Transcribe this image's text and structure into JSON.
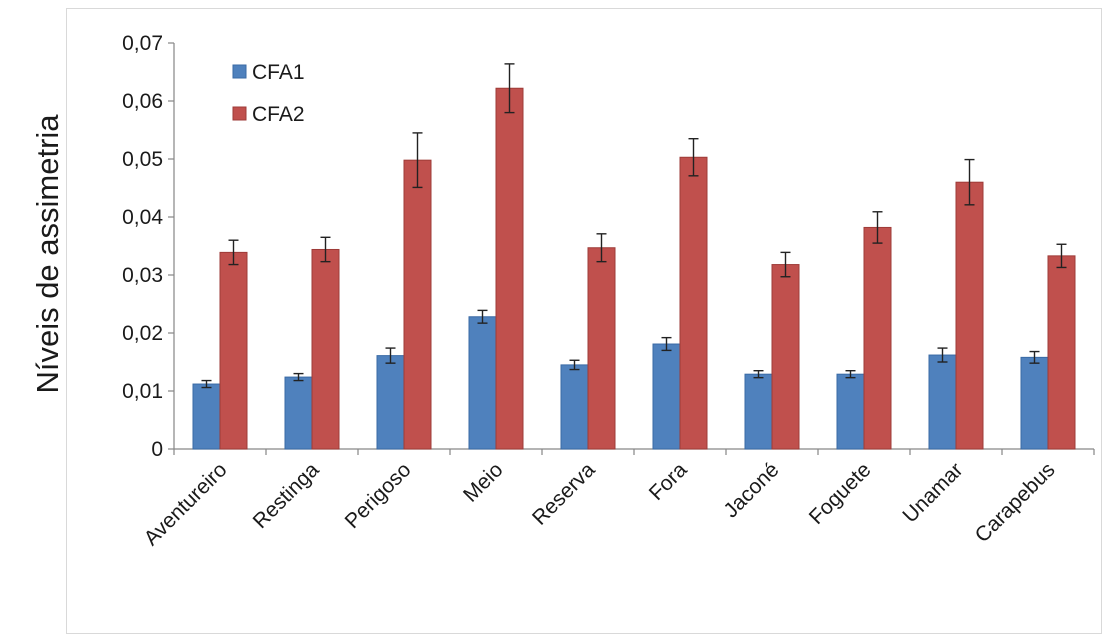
{
  "chart_data": {
    "type": "bar",
    "title": "",
    "xlabel": "",
    "ylabel": "Níveis de assimetria",
    "ylim": [
      0,
      0.07
    ],
    "yticks": [
      0,
      0.01,
      0.02,
      0.03,
      0.04,
      0.05,
      0.06,
      0.07
    ],
    "ytick_labels": [
      "0",
      "0,01",
      "0,02",
      "0,03",
      "0,04",
      "0,05",
      "0,06",
      "0,07"
    ],
    "categories": [
      "Aventureiro",
      "Restinga",
      "Perigoso",
      "Meio",
      "Reserva",
      "Fora",
      "Jaconé",
      "Foguete",
      "Unamar",
      "Carapebus"
    ],
    "series": [
      {
        "name": "CFA1",
        "color": "#4f81bd",
        "values": [
          0.0112,
          0.0124,
          0.0161,
          0.0228,
          0.0145,
          0.0181,
          0.0129,
          0.0129,
          0.0162,
          0.0158
        ],
        "errors": [
          0.0006,
          0.0006,
          0.0013,
          0.0011,
          0.0008,
          0.0011,
          0.0006,
          0.0006,
          0.0012,
          0.001
        ]
      },
      {
        "name": "CFA2",
        "color": "#c0504d",
        "values": [
          0.0339,
          0.0344,
          0.0498,
          0.0622,
          0.0347,
          0.0503,
          0.0318,
          0.0382,
          0.046,
          0.0333
        ],
        "errors": [
          0.0021,
          0.0021,
          0.0047,
          0.0042,
          0.0024,
          0.0032,
          0.0021,
          0.0027,
          0.0039,
          0.002
        ]
      }
    ],
    "grid": false,
    "error_bars": true,
    "legend_position": "top-left"
  }
}
